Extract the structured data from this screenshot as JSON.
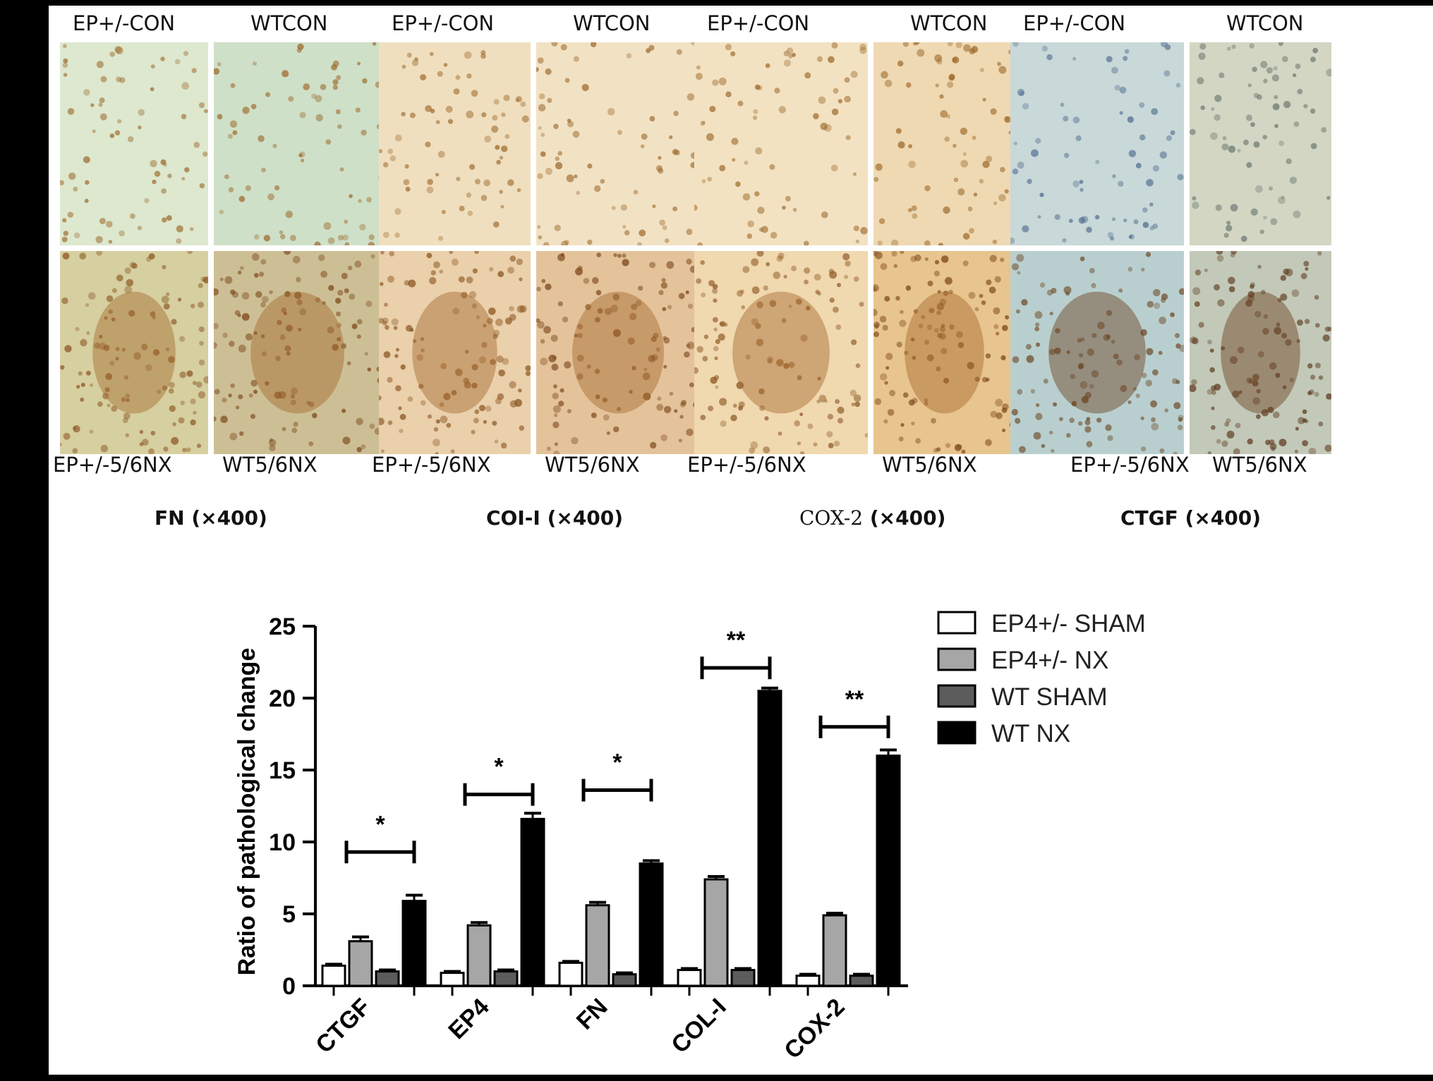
{
  "panels": [
    {
      "key": "fn",
      "top_left": "EP+/-CON",
      "top_right": "WTCON",
      "bottom_left": "EP+/-5/6NX",
      "bottom_right": "WT5/6NX",
      "caption_marker": "FN",
      "caption_mag": "(×400)",
      "colors": [
        "#dde8cf",
        "#cfe0c8",
        "#d6cfa0",
        "#cdbf95"
      ]
    },
    {
      "key": "col",
      "top_left": "EP+/-CON",
      "top_right": "WTCON",
      "bottom_left": "EP+/-5/6NX",
      "bottom_right": "WT5/6NX",
      "caption_marker": "COI-I",
      "caption_mag": "(×400)",
      "colors": [
        "#f0dfbf",
        "#f2e2c4",
        "#ead0ab",
        "#e4c39b"
      ]
    },
    {
      "key": "cox",
      "top_left": "EP+/-CON",
      "top_right": "WTCON",
      "bottom_left": "EP+/-5/6NX",
      "bottom_right": "WT5/6NX",
      "caption_marker": "COX-2",
      "caption_mag": "(×400)",
      "colors": [
        "#f3e2c2",
        "#efd9b3",
        "#f0d8af",
        "#e8c48e"
      ]
    },
    {
      "key": "ctgf",
      "top_left": "EP+/-CON",
      "top_right": "WTCON",
      "bottom_left": "EP+/-5/6NX",
      "bottom_right": "WT5/6NX",
      "caption_marker": "CTGF",
      "caption_mag": "(×400)",
      "colors": [
        "#c9d8d8",
        "#d4d6c4",
        "#b9cfcf",
        "#c2c9b8"
      ]
    }
  ],
  "chart_data": {
    "type": "bar",
    "title": "",
    "xlabel": "",
    "ylabel": "Ratio of pathological change",
    "ylim": [
      0,
      25
    ],
    "yticks": [
      0,
      5,
      10,
      15,
      20,
      25
    ],
    "categories": [
      "CTGF",
      "EP4",
      "FN",
      "COL-I",
      "COX-2"
    ],
    "series": [
      {
        "name": "EP4+/- SHAM",
        "color": "#ffffff",
        "values": [
          1.4,
          0.9,
          1.6,
          1.1,
          0.7
        ],
        "errors": [
          0.1,
          0.1,
          0.1,
          0.1,
          0.1
        ]
      },
      {
        "name": "EP4+/- NX",
        "color": "#a6a6a6",
        "values": [
          3.1,
          4.2,
          5.6,
          7.4,
          4.9
        ],
        "errors": [
          0.3,
          0.2,
          0.2,
          0.2,
          0.15
        ]
      },
      {
        "name": "WT SHAM",
        "color": "#5c5c5c",
        "values": [
          1.0,
          1.0,
          0.8,
          1.1,
          0.7
        ],
        "errors": [
          0.1,
          0.1,
          0.1,
          0.1,
          0.1
        ]
      },
      {
        "name": "WT NX",
        "color": "#000000",
        "values": [
          5.9,
          11.6,
          8.5,
          20.5,
          16.0
        ],
        "errors": [
          0.4,
          0.4,
          0.2,
          0.2,
          0.4
        ]
      }
    ],
    "significance": [
      {
        "category": "CTGF",
        "label": "*",
        "y": 9.3
      },
      {
        "category": "EP4",
        "label": "*",
        "y": 13.3
      },
      {
        "category": "FN",
        "label": "*",
        "y": 13.6
      },
      {
        "category": "COL-I",
        "label": "**",
        "y": 22.1
      },
      {
        "category": "COX-2",
        "label": "**",
        "y": 18.0
      }
    ],
    "legend_position": "top-right",
    "grid": false
  }
}
